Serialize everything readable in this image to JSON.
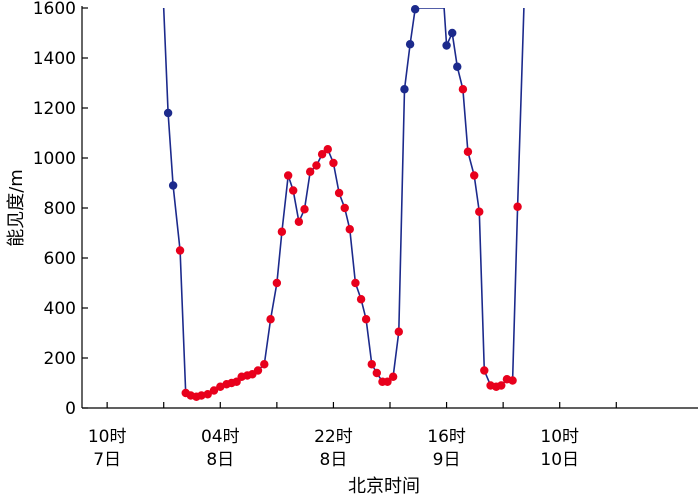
{
  "chart_data": {
    "type": "line",
    "xlabel": "北京时间",
    "ylabel": "能见度/m",
    "ylim": [
      0,
      1600
    ],
    "yticks": [
      0,
      200,
      400,
      600,
      800,
      1000,
      1200,
      1400,
      1600
    ],
    "xlim": [
      -4,
      94
    ],
    "xticks": [
      {
        "x": 0,
        "line1": "10时",
        "line2": "7日"
      },
      {
        "x": 18,
        "line1": "04时",
        "line2": "8日"
      },
      {
        "x": 36,
        "line1": "22时",
        "line2": "8日"
      },
      {
        "x": 54,
        "line1": "16时",
        "line2": "9日"
      },
      {
        "x": 72,
        "line1": "10时",
        "line2": "10日"
      }
    ],
    "colors": {
      "line": "#1c2a8c",
      "blue_point": "#1c2a8c",
      "red_point": "#e8001c",
      "axis": "#000000"
    },
    "line_points": [
      [
        9.0,
        1600
      ],
      [
        9.7,
        1180
      ],
      [
        10.5,
        890
      ],
      [
        11.6,
        630
      ],
      [
        12.5,
        60
      ],
      [
        13.3,
        50
      ],
      [
        14.2,
        45
      ],
      [
        15.0,
        50
      ],
      [
        16.0,
        55
      ],
      [
        17.0,
        70
      ],
      [
        18.0,
        85
      ],
      [
        19.0,
        95
      ],
      [
        19.8,
        100
      ],
      [
        20.6,
        105
      ],
      [
        21.4,
        125
      ],
      [
        22.3,
        130
      ],
      [
        23.1,
        135
      ],
      [
        24.0,
        150
      ],
      [
        25.0,
        175
      ],
      [
        26.0,
        355
      ],
      [
        27.0,
        500
      ],
      [
        27.8,
        705
      ],
      [
        28.8,
        930
      ],
      [
        29.6,
        870
      ],
      [
        30.5,
        745
      ],
      [
        31.4,
        795
      ],
      [
        32.3,
        945
      ],
      [
        33.3,
        970
      ],
      [
        34.2,
        1015
      ],
      [
        35.1,
        1035
      ],
      [
        36.0,
        980
      ],
      [
        36.9,
        860
      ],
      [
        37.8,
        800
      ],
      [
        38.6,
        715
      ],
      [
        39.5,
        500
      ],
      [
        40.4,
        435
      ],
      [
        41.2,
        355
      ],
      [
        42.1,
        175
      ],
      [
        42.9,
        140
      ],
      [
        43.8,
        105
      ],
      [
        44.6,
        105
      ],
      [
        45.5,
        125
      ],
      [
        46.4,
        305
      ],
      [
        47.3,
        1275
      ],
      [
        48.2,
        1455
      ],
      [
        49.0,
        1595
      ],
      [
        49.4,
        1600
      ],
      [
        53.6,
        1600
      ],
      [
        54.0,
        1450
      ],
      [
        54.9,
        1500
      ],
      [
        55.7,
        1365
      ],
      [
        56.6,
        1275
      ],
      [
        57.4,
        1025
      ],
      [
        58.4,
        930
      ],
      [
        59.2,
        785
      ],
      [
        60.0,
        150
      ],
      [
        61.0,
        90
      ],
      [
        61.9,
        85
      ],
      [
        62.7,
        90
      ],
      [
        63.6,
        115
      ],
      [
        64.5,
        110
      ],
      [
        65.3,
        805
      ],
      [
        66.3,
        1600
      ]
    ],
    "blue_points": [
      [
        9.7,
        1180
      ],
      [
        10.5,
        890
      ],
      [
        47.3,
        1275
      ],
      [
        48.2,
        1455
      ],
      [
        49.0,
        1595
      ],
      [
        54.0,
        1450
      ],
      [
        54.9,
        1500
      ],
      [
        55.7,
        1365
      ]
    ],
    "red_points": [
      [
        11.6,
        630
      ],
      [
        12.5,
        60
      ],
      [
        13.3,
        50
      ],
      [
        14.2,
        45
      ],
      [
        15.0,
        50
      ],
      [
        16.0,
        55
      ],
      [
        17.0,
        70
      ],
      [
        18.0,
        85
      ],
      [
        19.0,
        95
      ],
      [
        19.8,
        100
      ],
      [
        20.6,
        105
      ],
      [
        21.4,
        125
      ],
      [
        22.3,
        130
      ],
      [
        23.1,
        135
      ],
      [
        24.0,
        150
      ],
      [
        25.0,
        175
      ],
      [
        26.0,
        355
      ],
      [
        27.0,
        500
      ],
      [
        27.8,
        705
      ],
      [
        28.8,
        930
      ],
      [
        29.6,
        870
      ],
      [
        30.5,
        745
      ],
      [
        31.4,
        795
      ],
      [
        32.3,
        945
      ],
      [
        33.3,
        970
      ],
      [
        34.2,
        1015
      ],
      [
        35.1,
        1035
      ],
      [
        36.0,
        980
      ],
      [
        36.9,
        860
      ],
      [
        37.8,
        800
      ],
      [
        38.6,
        715
      ],
      [
        39.5,
        500
      ],
      [
        40.4,
        435
      ],
      [
        41.2,
        355
      ],
      [
        42.1,
        175
      ],
      [
        42.9,
        140
      ],
      [
        43.8,
        105
      ],
      [
        44.6,
        105
      ],
      [
        45.5,
        125
      ],
      [
        46.4,
        305
      ],
      [
        56.6,
        1275
      ],
      [
        57.4,
        1025
      ],
      [
        58.4,
        930
      ],
      [
        59.2,
        785
      ],
      [
        60.0,
        150
      ],
      [
        61.0,
        90
      ],
      [
        61.9,
        85
      ],
      [
        62.7,
        90
      ],
      [
        63.6,
        115
      ],
      [
        64.5,
        110
      ],
      [
        65.3,
        805
      ]
    ]
  }
}
